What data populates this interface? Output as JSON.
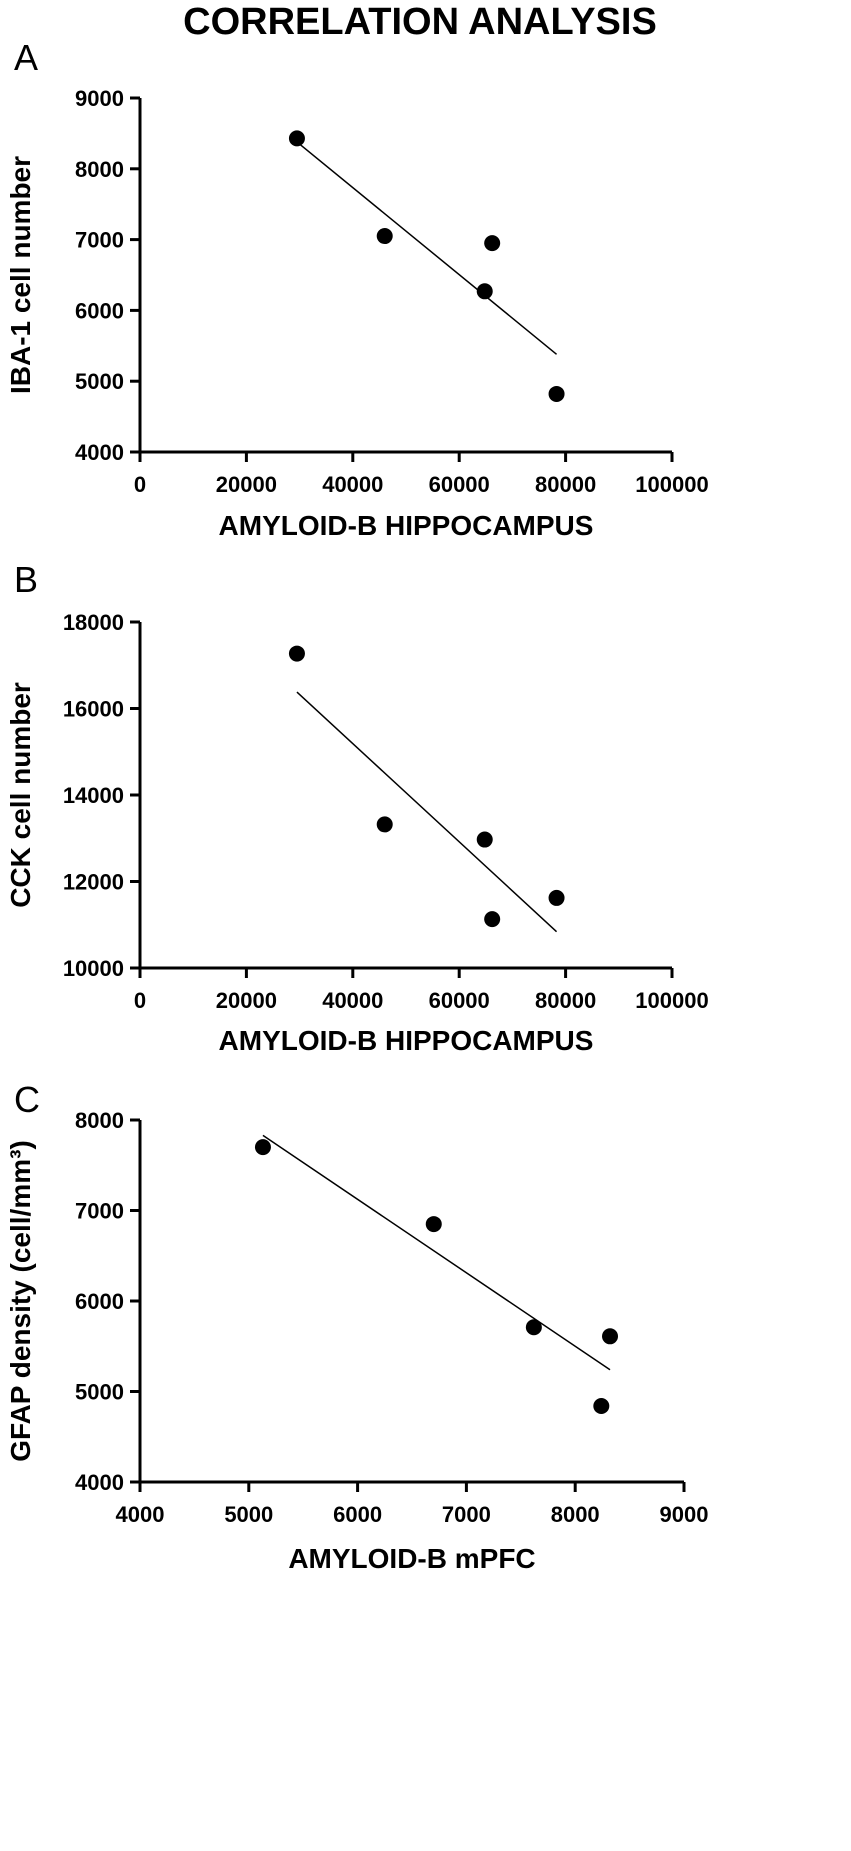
{
  "figure": {
    "title": "CORRELATION ANALYSIS"
  },
  "chart_data": [
    {
      "panel": "A",
      "type": "scatter",
      "xlabel": "AMYLOID-B HIPPOCAMPUS",
      "ylabel": "IBA-1 cell number",
      "xlim": [
        0,
        100000
      ],
      "ylim": [
        4000,
        9000
      ],
      "xticks": [
        0,
        20000,
        40000,
        60000,
        80000,
        100000
      ],
      "yticks": [
        4000,
        5000,
        6000,
        7000,
        8000,
        9000
      ],
      "points": [
        {
          "x": 29500,
          "y": 8430
        },
        {
          "x": 46000,
          "y": 7050
        },
        {
          "x": 64800,
          "y": 6270
        },
        {
          "x": 66200,
          "y": 6950
        },
        {
          "x": 78300,
          "y": 4820
        }
      ],
      "fit_line": {
        "x": [
          29500,
          78300
        ],
        "y": [
          8380,
          5380
        ]
      },
      "grid": false,
      "legend": "none"
    },
    {
      "panel": "B",
      "type": "scatter",
      "xlabel": "AMYLOID-B HIPPOCAMPUS",
      "ylabel": "CCK cell number",
      "xlim": [
        0,
        100000
      ],
      "ylim": [
        10000,
        18000
      ],
      "xticks": [
        0,
        20000,
        40000,
        60000,
        80000,
        100000
      ],
      "yticks": [
        10000,
        12000,
        14000,
        16000,
        18000
      ],
      "points": [
        {
          "x": 29500,
          "y": 17270
        },
        {
          "x": 46000,
          "y": 13320
        },
        {
          "x": 64800,
          "y": 12970
        },
        {
          "x": 66200,
          "y": 11130
        },
        {
          "x": 78300,
          "y": 11620
        }
      ],
      "fit_line": {
        "x": [
          29500,
          78300
        ],
        "y": [
          16380,
          10840
        ]
      },
      "grid": false,
      "legend": "none"
    },
    {
      "panel": "C",
      "type": "scatter",
      "xlabel": "AMYLOID-B mPFC",
      "ylabel": "GFAP density (cell/mm³)",
      "xlim": [
        4000,
        9000
      ],
      "ylim": [
        4000,
        8000
      ],
      "xticks": [
        4000,
        5000,
        6000,
        7000,
        8000,
        9000
      ],
      "yticks": [
        4000,
        5000,
        6000,
        7000,
        8000
      ],
      "points": [
        {
          "x": 5130,
          "y": 7700
        },
        {
          "x": 6700,
          "y": 6850
        },
        {
          "x": 7620,
          "y": 5710
        },
        {
          "x": 8240,
          "y": 4840
        },
        {
          "x": 8320,
          "y": 5610
        }
      ],
      "fit_line": {
        "x": [
          5130,
          8320
        ],
        "y": [
          7830,
          5240
        ]
      },
      "grid": false,
      "legend": "none"
    }
  ]
}
